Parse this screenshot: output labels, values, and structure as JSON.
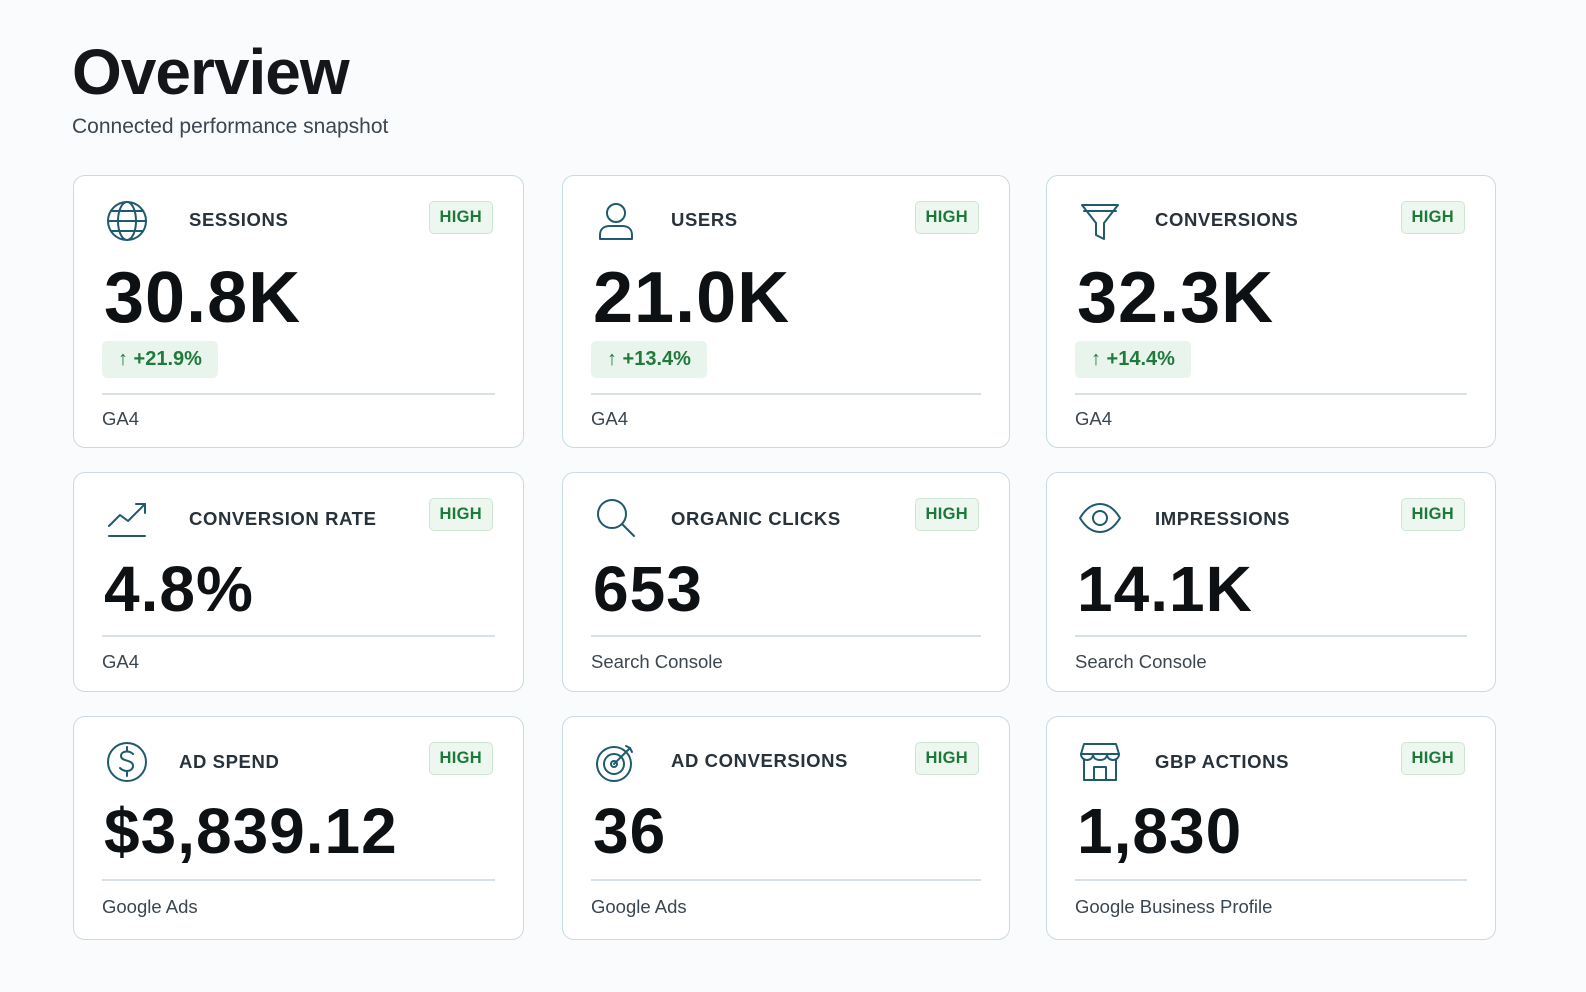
{
  "page": {
    "title": "Overview",
    "subtitle": "Connected performance snapshot"
  },
  "cards": [
    {
      "label": "SESSIONS",
      "badge": "HIGH",
      "value": "30.8K",
      "delta": "↑ +21.9%",
      "source": "GA4",
      "icon": "globe-icon"
    },
    {
      "label": "USERS",
      "badge": "HIGH",
      "value": "21.0K",
      "delta": "↑ +13.4%",
      "source": "GA4",
      "icon": "user-icon"
    },
    {
      "label": "CONVERSIONS",
      "badge": "HIGH",
      "value": "32.3K",
      "delta": "↑ +14.4%",
      "source": "GA4",
      "icon": "funnel-icon"
    },
    {
      "label": "CONVERSION RATE",
      "badge": "HIGH",
      "value": "4.8%",
      "source": "GA4",
      "icon": "trend-chart-icon"
    },
    {
      "label": "ORGANIC CLICKS",
      "badge": "HIGH",
      "value": "653",
      "source": "Search Console",
      "icon": "search-icon"
    },
    {
      "label": "IMPRESSIONS",
      "badge": "HIGH",
      "value": "14.1K",
      "source": "Search Console",
      "icon": "eye-icon"
    },
    {
      "label": "AD SPEND",
      "badge": "HIGH",
      "value": "$3,839.12",
      "source": "Google Ads",
      "icon": "dollar-icon"
    },
    {
      "label": "AD CONVERSIONS",
      "badge": "HIGH",
      "value": "36",
      "source": "Google Ads",
      "icon": "target-icon"
    },
    {
      "label": "GBP ACTIONS",
      "badge": "HIGH",
      "value": "1,830",
      "source": "Google Business Profile",
      "icon": "storefront-icon"
    }
  ],
  "colors": {
    "accent_icon": "#1f5a6e",
    "badge_text": "#1b7a38",
    "delta_text": "#1f7a3c",
    "border": "#c9dbe2"
  }
}
